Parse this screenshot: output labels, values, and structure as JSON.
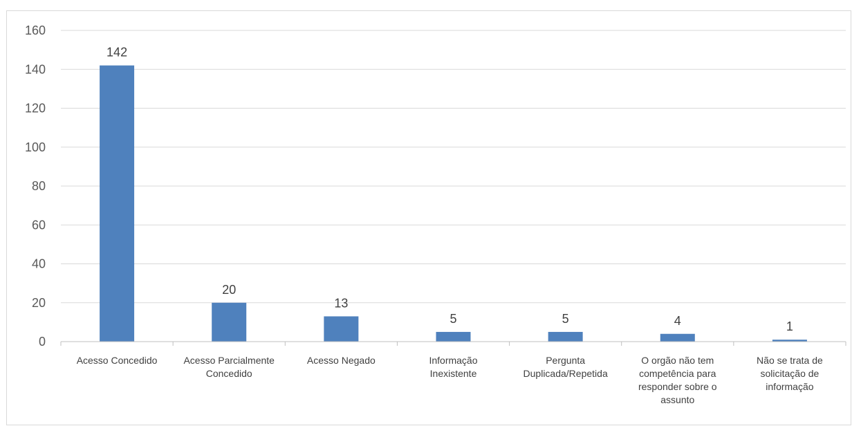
{
  "chart_data": {
    "type": "bar",
    "categories": [
      "Acesso Concedido",
      "Acesso Parcialmente Concedido",
      "Acesso Negado",
      "Informação Inexistente",
      "Pergunta Duplicada/Repetida",
      "O orgão não tem competência para responder sobre o assunto",
      "Não se trata de solicitação de informação"
    ],
    "category_lines": [
      [
        "Acesso Concedido"
      ],
      [
        "Acesso Parcialmente",
        "Concedido"
      ],
      [
        "Acesso Negado"
      ],
      [
        "Informação",
        "Inexistente"
      ],
      [
        "Pergunta",
        "Duplicada/Repetida"
      ],
      [
        "O orgão não tem",
        "competência para",
        "responder sobre o",
        "assunto"
      ],
      [
        "Não se trata de",
        "solicitação de",
        "informação"
      ]
    ],
    "values": [
      142,
      20,
      13,
      5,
      5,
      4,
      1
    ],
    "data_labels": [
      "142",
      "20",
      "13",
      "5",
      "5",
      "4",
      "1"
    ],
    "yticks": [
      "0",
      "20",
      "40",
      "60",
      "80",
      "100",
      "120",
      "140",
      "160"
    ],
    "ylim": [
      0,
      160
    ],
    "grid": true,
    "legend": "none",
    "colors": {
      "bar": "#4f81bd",
      "grid": "#d9d9d9",
      "axis": "#bfbfbf"
    }
  }
}
